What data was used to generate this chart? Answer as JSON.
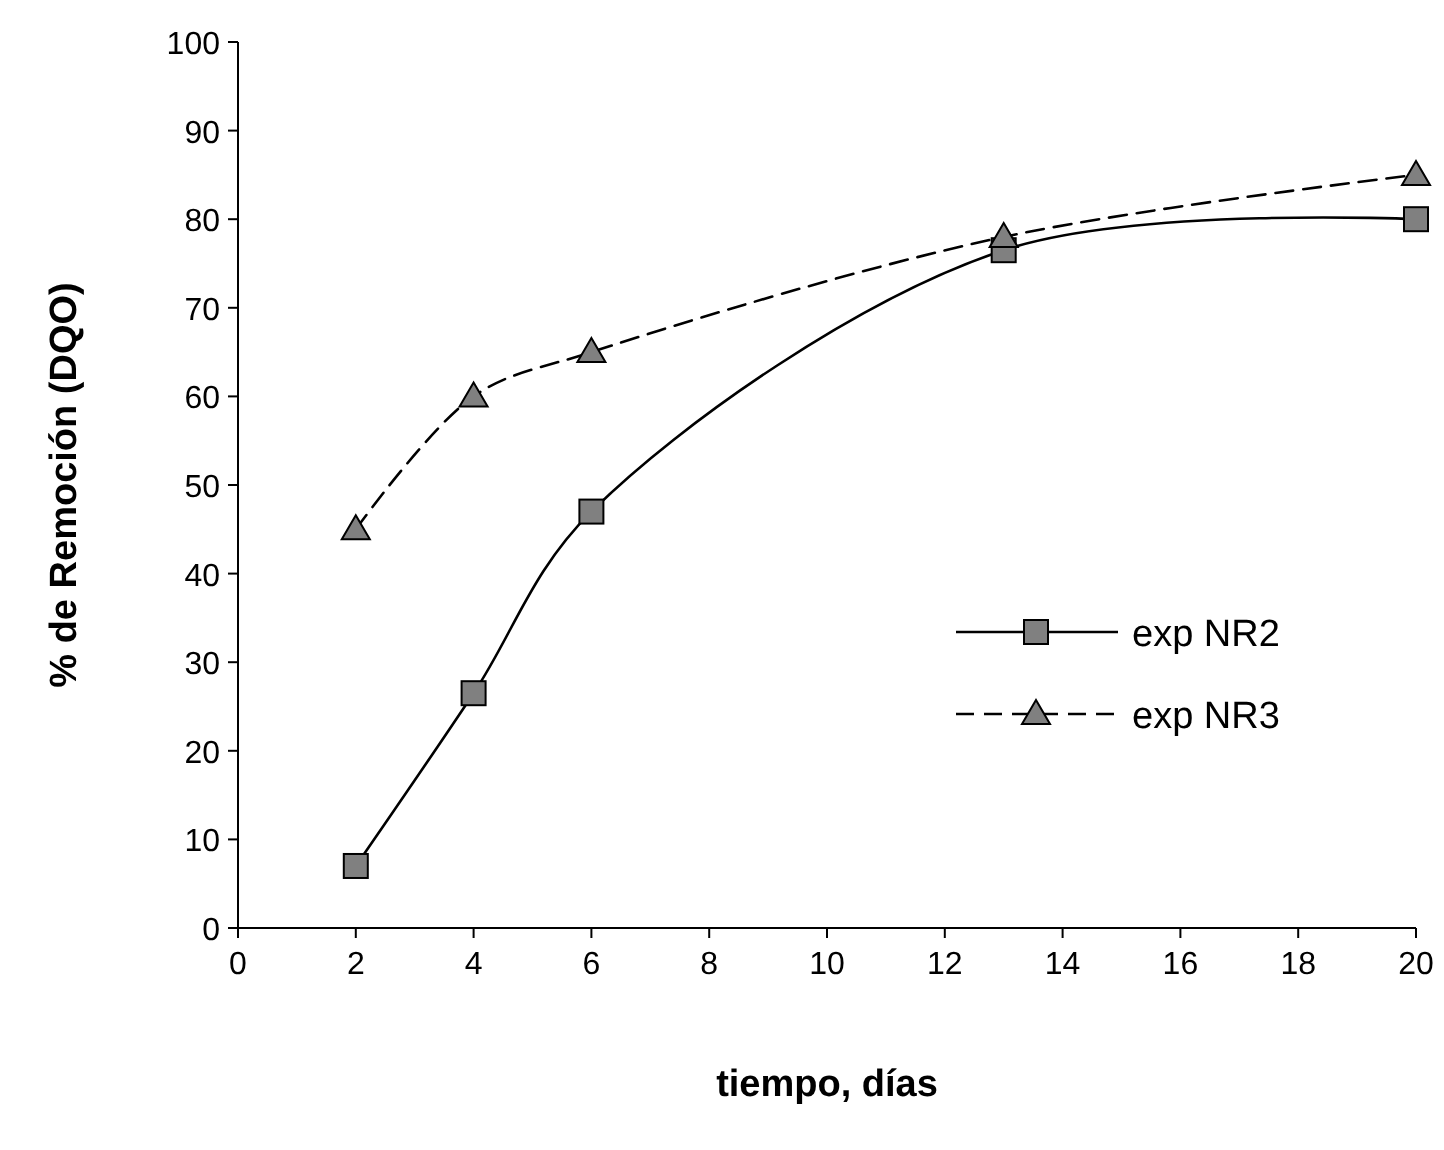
{
  "chart_data": {
    "type": "line",
    "xlabel": "tiempo,  días",
    "ylabel": "% de Remoción (DQO)",
    "x": [
      2,
      4,
      6,
      13,
      20
    ],
    "series": [
      {
        "name": "exp NR2",
        "color": "#000000",
        "values": [
          7,
          26.5,
          47,
          76.5,
          80
        ],
        "marker": "square",
        "line_style": "solid"
      },
      {
        "name": "exp NR3",
        "color": "#000000",
        "values": [
          45,
          60,
          65,
          78,
          85
        ],
        "marker": "triangle",
        "line_style": "dashed"
      }
    ],
    "xlim": [
      0,
      20
    ],
    "xticks": [
      0,
      2,
      4,
      6,
      8,
      10,
      12,
      14,
      16,
      18,
      20
    ],
    "ylim": [
      0,
      100
    ],
    "yticks": [
      0,
      10,
      20,
      30,
      40,
      50,
      60,
      70,
      80,
      90,
      100
    ],
    "grid": false,
    "legend": "right"
  }
}
